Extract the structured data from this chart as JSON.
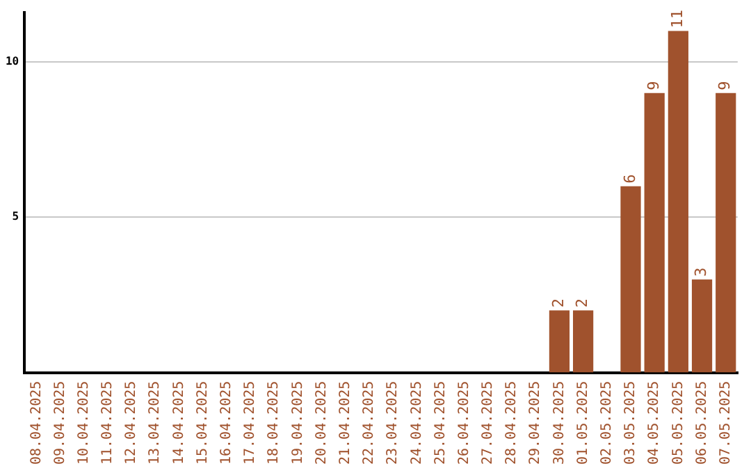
{
  "chart_data": {
    "type": "bar",
    "categories": [
      "08.04.2025",
      "09.04.2025",
      "10.04.2025",
      "11.04.2025",
      "12.04.2025",
      "13.04.2025",
      "14.04.2025",
      "15.04.2025",
      "16.04.2025",
      "17.04.2025",
      "18.04.2025",
      "19.04.2025",
      "20.04.2025",
      "21.04.2025",
      "22.04.2025",
      "23.04.2025",
      "24.04.2025",
      "25.04.2025",
      "26.04.2025",
      "27.04.2025",
      "28.04.2025",
      "29.04.2025",
      "30.04.2025",
      "01.05.2025",
      "02.05.2025",
      "03.05.2025",
      "04.05.2025",
      "05.05.2025",
      "06.05.2025",
      "07.05.2025"
    ],
    "values": [
      0,
      0,
      0,
      0,
      0,
      0,
      0,
      0,
      0,
      0,
      0,
      0,
      0,
      0,
      0,
      0,
      0,
      0,
      0,
      0,
      0,
      0,
      2,
      2,
      0,
      6,
      9,
      11,
      3,
      9
    ],
    "value_labels": [
      null,
      null,
      null,
      null,
      null,
      null,
      null,
      null,
      null,
      null,
      null,
      null,
      null,
      null,
      null,
      null,
      null,
      null,
      null,
      null,
      null,
      null,
      "2",
      "2",
      null,
      "6",
      "9",
      "11",
      "3",
      "9"
    ],
    "color": "#a0522d",
    "ylim": [
      0,
      11.6
    ],
    "yticks": [
      5,
      10
    ],
    "grid": "y",
    "legend": false
  }
}
